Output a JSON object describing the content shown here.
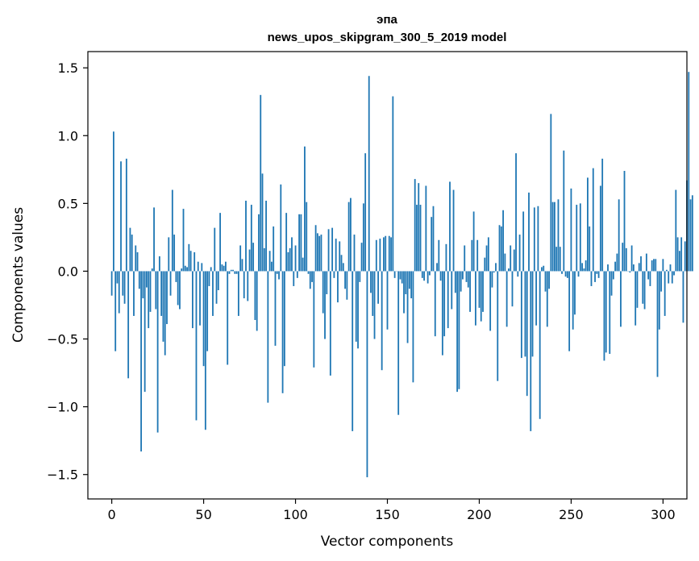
{
  "chart_data": {
    "type": "bar",
    "title": "эпа",
    "subtitle": "news_upos_skipgram_300_5_2019 model",
    "xlabel": "Vector components",
    "ylabel": "Components values",
    "xlim": [
      -13,
      313
    ],
    "ylim": [
      -1.68,
      1.62
    ],
    "xticks": [
      0,
      50,
      100,
      150,
      200,
      250,
      300
    ],
    "yticks": [
      -1.5,
      -1.0,
      -0.5,
      0.0,
      0.5,
      1.0,
      1.5
    ],
    "ytick_labels": [
      "−1.5",
      "−1.0",
      "−0.5",
      "0.0",
      "0.5",
      "1.0",
      "1.5"
    ],
    "grid": false,
    "bar_color": "#1f77b4",
    "values": [
      -0.18,
      1.03,
      -0.59,
      -0.09,
      -0.31,
      0.81,
      -0.18,
      -0.24,
      0.83,
      -0.79,
      0.32,
      0.27,
      -0.33,
      0.19,
      0.14,
      -0.13,
      -1.33,
      -0.2,
      -0.89,
      -0.12,
      -0.42,
      -0.3,
      0.02,
      0.47,
      -0.28,
      -1.19,
      0.11,
      -0.33,
      -0.52,
      -0.62,
      -0.39,
      0.25,
      -0.18,
      0.6,
      0.27,
      -0.08,
      -0.25,
      -0.28,
      0.02,
      0.46,
      0.04,
      0.03,
      0.2,
      0.15,
      -0.42,
      0.14,
      -1.1,
      0.07,
      -0.4,
      0.06,
      -0.7,
      -1.17,
      -0.59,
      -0.11,
      0.03,
      -0.33,
      0.32,
      -0.24,
      -0.14,
      0.43,
      0.05,
      0.04,
      0.07,
      -0.69,
      -0.02,
      0.01,
      0.01,
      -0.02,
      -0.02,
      -0.33,
      0.19,
      0.09,
      -0.2,
      0.52,
      -0.22,
      0.16,
      0.49,
      0.21,
      -0.36,
      -0.44,
      0.42,
      1.3,
      0.72,
      0.17,
      0.52,
      -0.97,
      0.15,
      0.07,
      0.33,
      -0.55,
      -0.02,
      -0.06,
      0.64,
      -0.9,
      -0.7,
      0.43,
      0.14,
      0.17,
      0.25,
      -0.11,
      0.19,
      -0.05,
      0.42,
      0.42,
      0.1,
      0.92,
      0.51,
      -0.02,
      -0.13,
      -0.08,
      -0.71,
      0.34,
      0.28,
      0.26,
      0.27,
      -0.31,
      -0.5,
      -0.17,
      0.31,
      -0.77,
      0.32,
      -0.05,
      0.24,
      -0.23,
      0.22,
      0.12,
      0.06,
      -0.13,
      -0.21,
      0.51,
      0.54,
      -1.18,
      0.27,
      -0.52,
      -0.57,
      -0.08,
      0.21,
      0.5,
      0.87,
      -1.52,
      1.44,
      -0.16,
      -0.33,
      -0.5,
      0.23,
      -0.24,
      0.24,
      -0.73,
      0.25,
      0.26,
      -0.43,
      0.26,
      0.25,
      1.29,
      -0.05,
      0.0,
      -1.06,
      -0.06,
      -0.09,
      -0.31,
      -0.17,
      -0.53,
      -0.13,
      -0.2,
      -0.82,
      0.68,
      0.49,
      0.65,
      0.49,
      -0.05,
      -0.07,
      0.63,
      -0.09,
      -0.03,
      0.4,
      0.48,
      -0.48,
      0.06,
      0.23,
      -0.07,
      -0.62,
      -0.48,
      0.2,
      -0.42,
      0.66,
      -0.28,
      0.6,
      -0.16,
      -0.89,
      -0.87,
      -0.15,
      -0.06,
      0.19,
      -0.08,
      -0.12,
      -0.3,
      0.23,
      0.44,
      -0.4,
      0.23,
      -0.27,
      -0.37,
      -0.3,
      0.1,
      0.19,
      0.25,
      -0.44,
      -0.12,
      -0.01,
      0.06,
      -0.81,
      0.34,
      0.33,
      0.45,
      0.13,
      -0.41,
      0.02,
      0.19,
      -0.26,
      0.16,
      0.87,
      -0.04,
      0.27,
      -0.64,
      0.44,
      -0.63,
      -0.92,
      0.58,
      -1.18,
      -0.63,
      0.47,
      -0.4,
      0.48,
      -1.09,
      0.03,
      0.04,
      -0.15,
      -0.41,
      -0.13,
      1.16,
      0.51,
      0.51,
      0.18,
      0.53,
      0.18,
      -0.02,
      0.89,
      -0.04,
      -0.05,
      -0.59,
      0.61,
      -0.43,
      -0.32,
      0.49,
      -0.04,
      0.5,
      0.06,
      0.02,
      0.08,
      0.69,
      0.33,
      -0.11,
      0.76,
      -0.08,
      -0.02,
      -0.05,
      0.63,
      0.83,
      -0.66,
      -0.6,
      0.05,
      -0.61,
      -0.18,
      -0.06,
      0.07,
      0.13,
      0.53,
      -0.41,
      0.21,
      0.74,
      0.17,
      0.0,
      -0.01,
      0.19,
      0.05,
      -0.4,
      -0.27,
      0.06,
      0.11,
      -0.24,
      -0.28,
      0.13,
      -0.06,
      -0.11,
      0.08,
      0.09,
      0.09,
      -0.78,
      -0.43,
      -0.15,
      0.09,
      -0.33,
      0.01,
      -0.09,
      0.05,
      -0.09,
      -0.03,
      0.6,
      0.25,
      0.15,
      0.25,
      -0.38,
      0.22,
      0.67,
      1.47,
      0.53,
      0.56
    ]
  }
}
